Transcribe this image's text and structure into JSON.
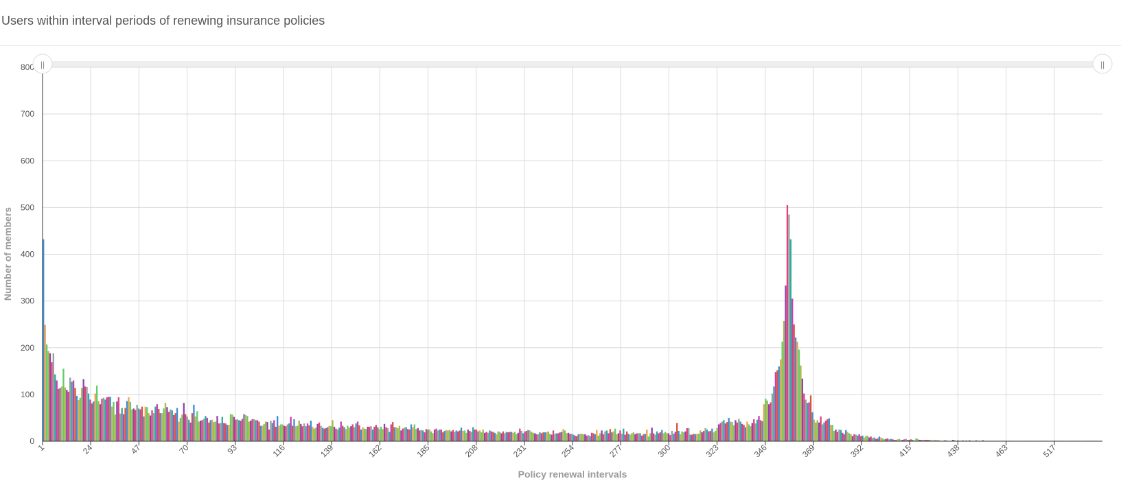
{
  "header": {
    "title": "Users within interval periods of renewing insurance policies"
  },
  "scrollbar": {
    "start_handle_icon": "grip-handle-icon",
    "end_handle_icon": "grip-handle-icon",
    "handle_glyph": "||"
  },
  "chart_data": {
    "type": "bar",
    "xlabel": "Policy renewal intervals",
    "ylabel": "Number of members",
    "ylim": [
      0,
      800
    ],
    "y_ticks": [
      "0",
      "100",
      "200",
      "300",
      "400",
      "500",
      "600",
      "700",
      "800"
    ],
    "x_tick_labels": [
      "1",
      "24",
      "47",
      "70",
      "93",
      "116",
      "139",
      "162",
      "185",
      "208",
      "231",
      "254",
      "277",
      "300",
      "323",
      "346",
      "369",
      "392",
      "415",
      "438",
      "463",
      "517"
    ],
    "grid": true,
    "legend": "none",
    "colors": [
      "#3a8fd9",
      "#f0a050",
      "#5fcf6a",
      "#a9b84a",
      "#8e44ad",
      "#e4427a",
      "#9aa09f",
      "#2eaaa0",
      "#cc3cb5",
      "#d9563a"
    ],
    "values": [
      432,
      249,
      207,
      193,
      188,
      169,
      188,
      143,
      130,
      112,
      114,
      117,
      155,
      115,
      110,
      106,
      136,
      127,
      130,
      114,
      97,
      88,
      93,
      114,
      133,
      117,
      116,
      102,
      89,
      81,
      85,
      102,
      119,
      86,
      79,
      91,
      93,
      89,
      94,
      95,
      95,
      74,
      84,
      57,
      85,
      94,
      59,
      71,
      58,
      71,
      86,
      94,
      84,
      68,
      70,
      67,
      78,
      70,
      68,
      74,
      53,
      74,
      73,
      60,
      55,
      66,
      60,
      74,
      79,
      69,
      60,
      60,
      70,
      82,
      73,
      63,
      68,
      66,
      56,
      60,
      71,
      42,
      50,
      57,
      82,
      58,
      53,
      46,
      40,
      60,
      78,
      53,
      64,
      42,
      44,
      45,
      48,
      54,
      50,
      40,
      45,
      46,
      41,
      42,
      54,
      38,
      39,
      52,
      39,
      38,
      35,
      35,
      58,
      57,
      52,
      46,
      47,
      45,
      44,
      48,
      58,
      56,
      54,
      42,
      44,
      47,
      47,
      45,
      45,
      42,
      33,
      33,
      37,
      42,
      41,
      25,
      44,
      39,
      45,
      31,
      54,
      33,
      36,
      36,
      33,
      32,
      36,
      38,
      52,
      33,
      47,
      32,
      33,
      44,
      37,
      32,
      38,
      32,
      38,
      34,
      44,
      31,
      27,
      29,
      37,
      40,
      33,
      29,
      27,
      28,
      30,
      33,
      32,
      45,
      31,
      27,
      25,
      29,
      42,
      33,
      30,
      26,
      33,
      29,
      32,
      36,
      30,
      38,
      42,
      34,
      25,
      30,
      27,
      26,
      31,
      31,
      32,
      25,
      31,
      35,
      30,
      26,
      31,
      26,
      37,
      30,
      28,
      20,
      36,
      41,
      30,
      30,
      28,
      33,
      23,
      27,
      29,
      30,
      26,
      25,
      36,
      30,
      36,
      26,
      28,
      23,
      24,
      23,
      19,
      26,
      25,
      25,
      21,
      17,
      25,
      27,
      23,
      25,
      25,
      19,
      22,
      24,
      23,
      24,
      21,
      24,
      20,
      23,
      21,
      23,
      29,
      22,
      23,
      18,
      25,
      22,
      20,
      30,
      25,
      25,
      21,
      23,
      19,
      25,
      18,
      20,
      18,
      23,
      21,
      20,
      18,
      15,
      21,
      20,
      17,
      21,
      17,
      20,
      19,
      20,
      20,
      18,
      20,
      15,
      18,
      27,
      22,
      17,
      21,
      22,
      24,
      23,
      20,
      18,
      17,
      15,
      15,
      19,
      17,
      19,
      19,
      19,
      21,
      16,
      14,
      23,
      16,
      17,
      17,
      19,
      20,
      26,
      23,
      17,
      18,
      16,
      16,
      14,
      12,
      11,
      15,
      16,
      16,
      15,
      15,
      12,
      13,
      11,
      18,
      17,
      15,
      24,
      12,
      17,
      23,
      15,
      21,
      23,
      17,
      26,
      19,
      21,
      27,
      15,
      17,
      23,
      16,
      27,
      14,
      21,
      16,
      14,
      17,
      19,
      15,
      17,
      17,
      17,
      12,
      15,
      16,
      25,
      10,
      17,
      29,
      17,
      14,
      21,
      17,
      19,
      24,
      17,
      20,
      17,
      17,
      13,
      22,
      16,
      20,
      39,
      22,
      15,
      21,
      19,
      21,
      28,
      28,
      14,
      14,
      16,
      15,
      16,
      16,
      23,
      19,
      22,
      28,
      25,
      21,
      22,
      27,
      19,
      22,
      28,
      36,
      39,
      42,
      45,
      38,
      41,
      50,
      42,
      41,
      34,
      45,
      40,
      48,
      42,
      37,
      35,
      30,
      42,
      36,
      32,
      39,
      47,
      38,
      46,
      54,
      45,
      43,
      79,
      91,
      87,
      79,
      83,
      102,
      117,
      148,
      152,
      160,
      175,
      213,
      257,
      333,
      505,
      485,
      432,
      305,
      250,
      222,
      213,
      196,
      162,
      134,
      102,
      89,
      82,
      83,
      98,
      62,
      46,
      40,
      45,
      40,
      53,
      36,
      40,
      44,
      47,
      49,
      35,
      35,
      22,
      25,
      20,
      25,
      24,
      18,
      15,
      24,
      20,
      17,
      15,
      11,
      15,
      14,
      12,
      15,
      11,
      12,
      8,
      11,
      12,
      8,
      10,
      7,
      8,
      5,
      6,
      10,
      8,
      6,
      4,
      5,
      6,
      4,
      5,
      4,
      3,
      3,
      4,
      5,
      3,
      3,
      4,
      5,
      3,
      3,
      4,
      3,
      2,
      6,
      5,
      3,
      3,
      3,
      3,
      3,
      3,
      3,
      3,
      2,
      3,
      2,
      2,
      2,
      1,
      1,
      2,
      2,
      1,
      1,
      1,
      3,
      2,
      1,
      2,
      1,
      1,
      2,
      1,
      2,
      1,
      2,
      1,
      1,
      1,
      2,
      1,
      1,
      1,
      3,
      1,
      1,
      1,
      1,
      1,
      1,
      1,
      1,
      1,
      1,
      1,
      1,
      1,
      1,
      1,
      1,
      1,
      1,
      1,
      1,
      1,
      1,
      1,
      1,
      1,
      1,
      1,
      1,
      1,
      1,
      1,
      1,
      1,
      1,
      1,
      1,
      1,
      1,
      1,
      1,
      1,
      1,
      1,
      1,
      1,
      1,
      1,
      1,
      1,
      1,
      1,
      1,
      1,
      1,
      1,
      1,
      1,
      1,
      1,
      1,
      1,
      1,
      1,
      1,
      1,
      1,
      1,
      1,
      1,
      1,
      1
    ]
  }
}
